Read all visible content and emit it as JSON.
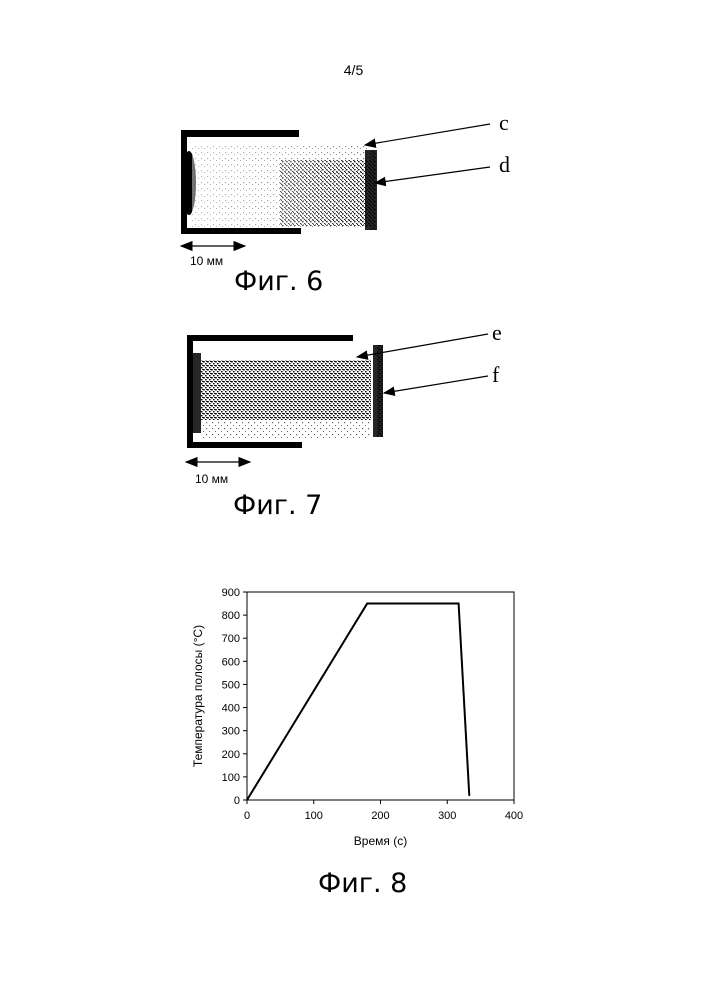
{
  "page": {
    "number": "4/5"
  },
  "figures": [
    {
      "caption": "Фиг. 6",
      "scale_label": "10 мм",
      "labels": [
        "c",
        "d"
      ]
    },
    {
      "caption": "Фиг. 7",
      "scale_label": "10 мм",
      "labels": [
        "e",
        "f"
      ]
    },
    {
      "caption": "Фиг. 8"
    }
  ],
  "chart_data": {
    "type": "line",
    "xlabel": "Время (с)",
    "ylabel": "Температура полосы (°C)",
    "xlim": [
      0,
      400
    ],
    "ylim": [
      0,
      900
    ],
    "xticks": [
      "0",
      "100",
      "200",
      "300",
      "400"
    ],
    "yticks": [
      "0",
      "100",
      "200",
      "300",
      "400",
      "500",
      "600",
      "700",
      "800",
      "900"
    ],
    "grid": false,
    "series": [
      {
        "x": [
          0,
          180,
          317,
          333
        ],
        "values": [
          0,
          850,
          850,
          20
        ],
        "color": "#000000"
      }
    ]
  }
}
